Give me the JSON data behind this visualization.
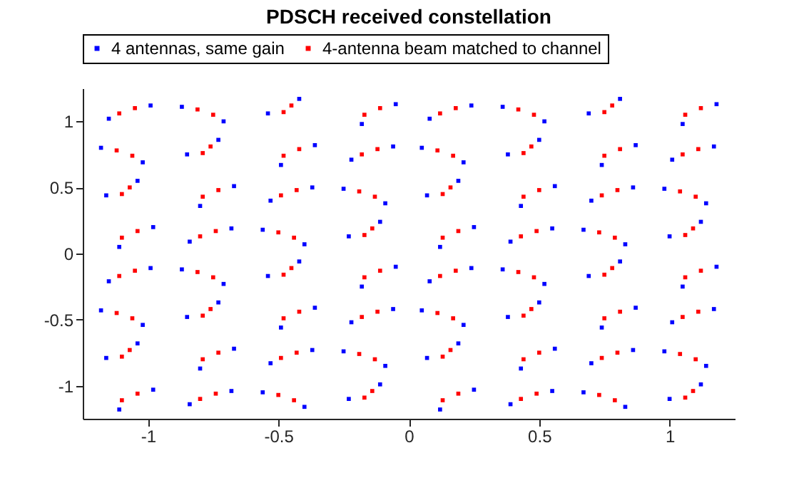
{
  "chart_data": {
    "type": "scatter",
    "title": "PDSCH received constellation",
    "xlim": [
      -1.25,
      1.25
    ],
    "ylim": [
      -1.25,
      1.25
    ],
    "xticks": [
      -1,
      -0.5,
      0,
      0.5,
      1
    ],
    "yticks": [
      -1,
      -0.5,
      0,
      0.5,
      1
    ],
    "grid": false,
    "legend": "top",
    "marker": "square",
    "series": [
      {
        "name": "4 antennas, same gain",
        "color": "#0000ff",
        "x": [
          -0.99,
          -1.15,
          -0.87,
          -0.71,
          -0.42,
          -0.54,
          -0.18,
          -0.05,
          0.24,
          0.08,
          0.36,
          0.52,
          0.81,
          0.69,
          1.05,
          1.18,
          -1.18,
          -1.02,
          -0.73,
          -0.85,
          -0.49,
          -0.36,
          -0.06,
          -0.22,
          0.05,
          0.21,
          0.5,
          0.38,
          0.74,
          0.87,
          1.17,
          1.01,
          -1.04,
          -1.16,
          -0.8,
          -0.67,
          -0.37,
          -0.53,
          -0.25,
          -0.09,
          0.19,
          0.07,
          0.43,
          0.56,
          0.86,
          0.7,
          0.98,
          1.14,
          -1.11,
          -0.98,
          -0.68,
          -0.84,
          -0.56,
          -0.4,
          -0.11,
          -0.23,
          0.12,
          0.25,
          0.55,
          0.39,
          0.67,
          0.83,
          1.12,
          1.0,
          -0.99,
          -1.15,
          -0.87,
          -0.71,
          -0.42,
          -0.54,
          -0.18,
          -0.05,
          0.24,
          0.08,
          0.36,
          0.52,
          0.81,
          0.69,
          1.05,
          1.18,
          -1.18,
          -1.02,
          -0.73,
          -0.85,
          -0.49,
          -0.36,
          -0.06,
          -0.22,
          0.05,
          0.21,
          0.5,
          0.38,
          0.74,
          0.87,
          1.17,
          1.01,
          -1.04,
          -1.16,
          -0.8,
          -0.67,
          -0.37,
          -0.53,
          -0.25,
          -0.09,
          0.19,
          0.07,
          0.43,
          0.56,
          0.86,
          0.7,
          0.98,
          1.14,
          -1.11,
          -0.98,
          -0.68,
          -0.84,
          -0.56,
          -0.4,
          -0.11,
          -0.23,
          0.12,
          0.25,
          0.55,
          0.39,
          0.67,
          0.83,
          1.12,
          1.0
        ],
        "values": [
          1.12,
          1.02,
          1.11,
          1.0,
          1.17,
          1.06,
          0.98,
          1.13,
          1.12,
          1.02,
          1.11,
          1.0,
          1.17,
          1.06,
          0.98,
          1.13,
          0.8,
          0.69,
          0.86,
          0.75,
          0.67,
          0.82,
          0.81,
          0.71,
          0.8,
          0.69,
          0.86,
          0.75,
          0.67,
          0.82,
          0.81,
          0.71,
          0.55,
          0.44,
          0.36,
          0.51,
          0.5,
          0.4,
          0.49,
          0.38,
          0.55,
          0.44,
          0.36,
          0.51,
          0.5,
          0.4,
          0.49,
          0.38,
          0.05,
          0.2,
          0.19,
          0.09,
          0.18,
          0.07,
          0.24,
          0.13,
          0.05,
          0.2,
          0.19,
          0.09,
          0.18,
          0.07,
          0.24,
          0.13,
          -0.11,
          -0.21,
          -0.12,
          -0.23,
          -0.06,
          -0.17,
          -0.25,
          -0.1,
          -0.11,
          -0.21,
          -0.12,
          -0.23,
          -0.06,
          -0.17,
          -0.25,
          -0.1,
          -0.43,
          -0.54,
          -0.37,
          -0.48,
          -0.56,
          -0.41,
          -0.42,
          -0.52,
          -0.43,
          -0.54,
          -0.37,
          -0.48,
          -0.56,
          -0.41,
          -0.42,
          -0.52,
          -0.68,
          -0.79,
          -0.87,
          -0.72,
          -0.73,
          -0.83,
          -0.74,
          -0.85,
          -0.68,
          -0.79,
          -0.87,
          -0.72,
          -0.73,
          -0.83,
          -0.74,
          -0.85,
          -1.18,
          -1.03,
          -1.04,
          -1.14,
          -1.05,
          -1.16,
          -0.99,
          -1.1,
          -1.18,
          -1.03,
          -1.04,
          -1.14,
          -1.05,
          -1.16,
          -0.99,
          -1.1
        ]
      },
      {
        "name": "4-antenna beam matched to channel",
        "color": "#ff0000",
        "x": [
          -1.05,
          -1.11,
          -0.81,
          -0.75,
          -0.45,
          -0.48,
          -0.17,
          -0.11,
          0.18,
          0.12,
          0.42,
          0.48,
          0.78,
          0.75,
          1.06,
          1.12,
          -1.12,
          -1.06,
          -0.76,
          -0.79,
          -0.48,
          -0.42,
          -0.12,
          -0.18,
          0.11,
          0.17,
          0.47,
          0.44,
          0.75,
          0.81,
          1.11,
          1.05,
          -1.07,
          -1.1,
          -0.79,
          -0.73,
          -0.43,
          -0.49,
          -0.19,
          -0.13,
          0.16,
          0.13,
          0.44,
          0.5,
          0.8,
          0.74,
          1.04,
          1.1,
          -1.1,
          -1.04,
          -0.74,
          -0.8,
          -0.5,
          -0.44,
          -0.14,
          -0.17,
          0.13,
          0.19,
          0.49,
          0.43,
          0.73,
          0.79,
          1.09,
          1.06,
          -1.05,
          -1.11,
          -0.81,
          -0.75,
          -0.45,
          -0.48,
          -0.17,
          -0.11,
          0.18,
          0.12,
          0.42,
          0.48,
          0.78,
          0.75,
          1.06,
          1.12,
          -1.12,
          -1.06,
          -0.76,
          -0.79,
          -0.48,
          -0.42,
          -0.12,
          -0.18,
          0.11,
          0.17,
          0.47,
          0.44,
          0.75,
          0.81,
          1.11,
          1.05,
          -1.07,
          -1.1,
          -0.79,
          -0.73,
          -0.43,
          -0.49,
          -0.19,
          -0.13,
          0.16,
          0.13,
          0.44,
          0.5,
          0.8,
          0.74,
          1.04,
          1.1,
          -1.1,
          -1.04,
          -0.74,
          -0.8,
          -0.5,
          -0.44,
          -0.14,
          -0.17,
          0.13,
          0.19,
          0.49,
          0.43,
          0.73,
          0.79,
          1.09,
          1.06
        ],
        "values": [
          1.1,
          1.06,
          1.09,
          1.05,
          1.12,
          1.07,
          1.05,
          1.1,
          1.1,
          1.06,
          1.09,
          1.05,
          1.12,
          1.07,
          1.05,
          1.1,
          0.78,
          0.74,
          0.81,
          0.76,
          0.74,
          0.79,
          0.79,
          0.75,
          0.78,
          0.74,
          0.81,
          0.76,
          0.74,
          0.79,
          0.79,
          0.75,
          0.5,
          0.45,
          0.43,
          0.48,
          0.48,
          0.44,
          0.47,
          0.43,
          0.5,
          0.45,
          0.43,
          0.48,
          0.48,
          0.44,
          0.47,
          0.43,
          0.12,
          0.17,
          0.17,
          0.13,
          0.16,
          0.12,
          0.19,
          0.14,
          0.12,
          0.17,
          0.17,
          0.13,
          0.16,
          0.12,
          0.19,
          0.14,
          -0.13,
          -0.17,
          -0.14,
          -0.18,
          -0.11,
          -0.16,
          -0.18,
          -0.13,
          -0.13,
          -0.17,
          -0.14,
          -0.18,
          -0.11,
          -0.16,
          -0.18,
          -0.13,
          -0.45,
          -0.49,
          -0.42,
          -0.47,
          -0.49,
          -0.44,
          -0.44,
          -0.48,
          -0.45,
          -0.49,
          -0.42,
          -0.47,
          -0.49,
          -0.44,
          -0.44,
          -0.48,
          -0.73,
          -0.78,
          -0.8,
          -0.75,
          -0.75,
          -0.79,
          -0.76,
          -0.8,
          -0.73,
          -0.78,
          -0.8,
          -0.75,
          -0.75,
          -0.79,
          -0.76,
          -0.8,
          -1.11,
          -1.06,
          -1.06,
          -1.1,
          -1.07,
          -1.11,
          -1.04,
          -1.09,
          -1.11,
          -1.06,
          -1.06,
          -1.1,
          -1.07,
          -1.11,
          -1.04,
          -1.09
        ]
      }
    ]
  }
}
